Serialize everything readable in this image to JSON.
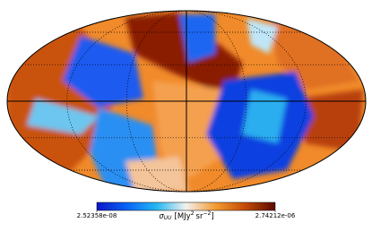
{
  "colorbar": {
    "ticks": [
      {
        "value": 2.52358e-08,
        "label": "2.52358e-08"
      },
      {
        "value": 2.74212e-06,
        "label": "2.74212e-06"
      }
    ],
    "label": {
      "symbol": "σ",
      "subscript": "UU",
      "unit_open": "[MJy",
      "unit_power": "2",
      "unit_sr": "sr",
      "sr_power": "−2",
      "unit_close": "]"
    },
    "colormap": [
      "#0b16c8",
      "#0a62f5",
      "#23b7f2",
      "#f3f1ee",
      "#f39a32",
      "#c24a06",
      "#5b0a00"
    ]
  }
}
